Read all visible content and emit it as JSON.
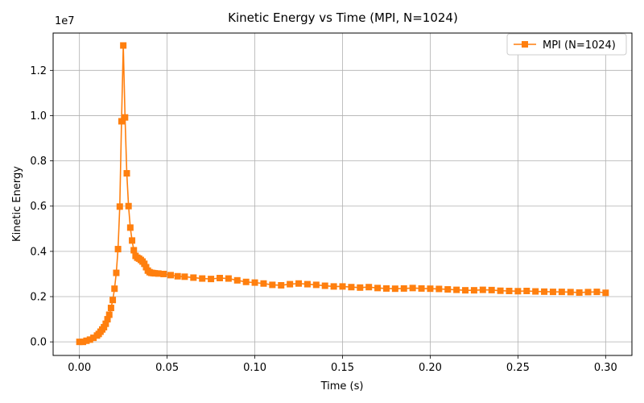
{
  "chart_data": {
    "type": "line",
    "title": "Kinetic Energy vs Time (MPI, N=1024)",
    "xlabel": "Time (s)",
    "ylabel": "Kinetic Energy",
    "y_multiplier_label": "1e7",
    "xlim": [
      -0.015,
      0.315
    ],
    "ylim": [
      -0.06,
      1.365
    ],
    "x_ticks": [
      0.0,
      0.05,
      0.1,
      0.15,
      0.2,
      0.25,
      0.3
    ],
    "x_tick_labels": [
      "0.00",
      "0.05",
      "0.10",
      "0.15",
      "0.20",
      "0.25",
      "0.30"
    ],
    "y_ticks": [
      0.0,
      0.2,
      0.4,
      0.6,
      0.8,
      1.0,
      1.2
    ],
    "y_tick_labels": [
      "0.0",
      "0.2",
      "0.4",
      "0.6",
      "0.8",
      "1.0",
      "1.2"
    ],
    "y_units_note": "y values expressed in units of 1e7",
    "grid": true,
    "legend_position": "top-right",
    "series": [
      {
        "name": "MPI (N=1024)",
        "color": "#ff7f0e",
        "marker": "square",
        "x": [
          0.0,
          0.002,
          0.004,
          0.006,
          0.008,
          0.01,
          0.011,
          0.012,
          0.013,
          0.014,
          0.015,
          0.016,
          0.017,
          0.018,
          0.019,
          0.02,
          0.021,
          0.022,
          0.023,
          0.024,
          0.025,
          0.026,
          0.027,
          0.028,
          0.029,
          0.03,
          0.031,
          0.032,
          0.033,
          0.034,
          0.035,
          0.036,
          0.037,
          0.038,
          0.039,
          0.04,
          0.041,
          0.042,
          0.043,
          0.045,
          0.048,
          0.052,
          0.056,
          0.06,
          0.065,
          0.07,
          0.075,
          0.08,
          0.085,
          0.09,
          0.095,
          0.1,
          0.105,
          0.11,
          0.115,
          0.12,
          0.125,
          0.13,
          0.135,
          0.14,
          0.145,
          0.15,
          0.155,
          0.16,
          0.165,
          0.17,
          0.175,
          0.18,
          0.185,
          0.19,
          0.195,
          0.2,
          0.205,
          0.21,
          0.215,
          0.22,
          0.225,
          0.23,
          0.235,
          0.24,
          0.245,
          0.25,
          0.255,
          0.26,
          0.265,
          0.27,
          0.275,
          0.28,
          0.285,
          0.29,
          0.295,
          0.3
        ],
        "y": [
          0.0,
          0.0,
          0.005,
          0.01,
          0.018,
          0.028,
          0.035,
          0.045,
          0.055,
          0.065,
          0.08,
          0.1,
          0.12,
          0.15,
          0.185,
          0.235,
          0.305,
          0.41,
          0.598,
          0.975,
          1.31,
          0.992,
          0.745,
          0.6,
          0.505,
          0.448,
          0.405,
          0.38,
          0.372,
          0.368,
          0.362,
          0.355,
          0.345,
          0.33,
          0.315,
          0.308,
          0.305,
          0.304,
          0.303,
          0.302,
          0.3,
          0.295,
          0.29,
          0.288,
          0.284,
          0.28,
          0.278,
          0.282,
          0.28,
          0.272,
          0.265,
          0.262,
          0.258,
          0.252,
          0.25,
          0.255,
          0.258,
          0.255,
          0.252,
          0.248,
          0.245,
          0.245,
          0.242,
          0.24,
          0.242,
          0.238,
          0.236,
          0.235,
          0.236,
          0.238,
          0.236,
          0.235,
          0.234,
          0.232,
          0.23,
          0.228,
          0.228,
          0.23,
          0.229,
          0.226,
          0.225,
          0.224,
          0.225,
          0.223,
          0.222,
          0.221,
          0.221,
          0.22,
          0.218,
          0.22,
          0.221,
          0.217
        ]
      }
    ]
  }
}
